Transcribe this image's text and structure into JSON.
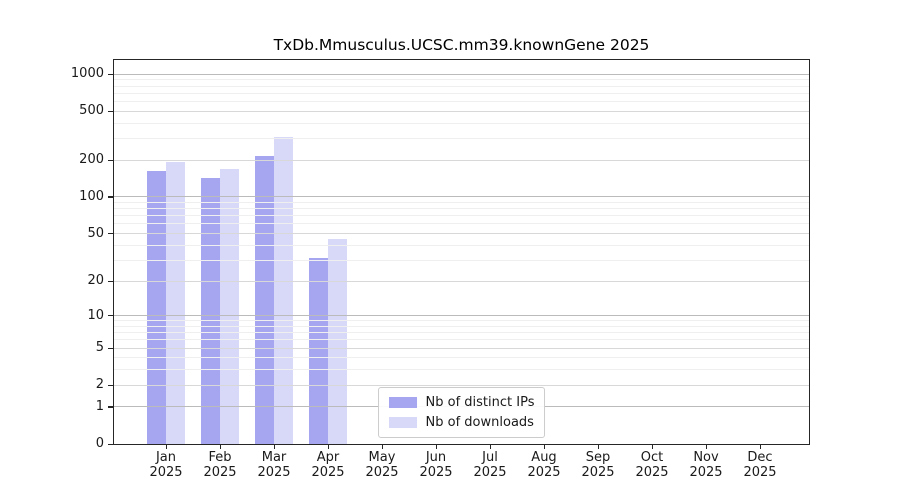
{
  "header": {
    "title": "TxDb.Mmusculus.UCSC.mm39.knownGene 2025"
  },
  "chart_data": {
    "type": "bar",
    "title": "TxDb.Mmusculus.UCSC.mm39.knownGene 2025",
    "categories": [
      "Jan",
      "Feb",
      "Mar",
      "Apr",
      "May",
      "Jun",
      "Jul",
      "Aug",
      "Sep",
      "Oct",
      "Nov",
      "Dec"
    ],
    "year_label": "2025",
    "series": [
      {
        "name": "Nb of distinct IPs",
        "color": "#a5a5f0",
        "values": [
          164,
          142,
          216,
          31,
          null,
          null,
          null,
          null,
          null,
          null,
          null,
          null
        ]
      },
      {
        "name": "Nb of downloads",
        "color": "#d8d8f8",
        "values": [
          194,
          170,
          306,
          45,
          null,
          null,
          null,
          null,
          null,
          null,
          null,
          null
        ]
      }
    ],
    "yticks": [
      0,
      1,
      2,
      5,
      10,
      20,
      50,
      100,
      200,
      500,
      1000
    ],
    "yscale": "log10(value+1)",
    "ymax": 1300,
    "xlabel": "",
    "ylabel": "",
    "grid": {
      "decade_color": "#bbbbbb",
      "labeled_color": "#d8d8d8",
      "minor_color": "#efefef",
      "on": true
    },
    "legend": {
      "position": "lower center"
    },
    "axis_color": "#262626",
    "background": "#ffffff"
  }
}
